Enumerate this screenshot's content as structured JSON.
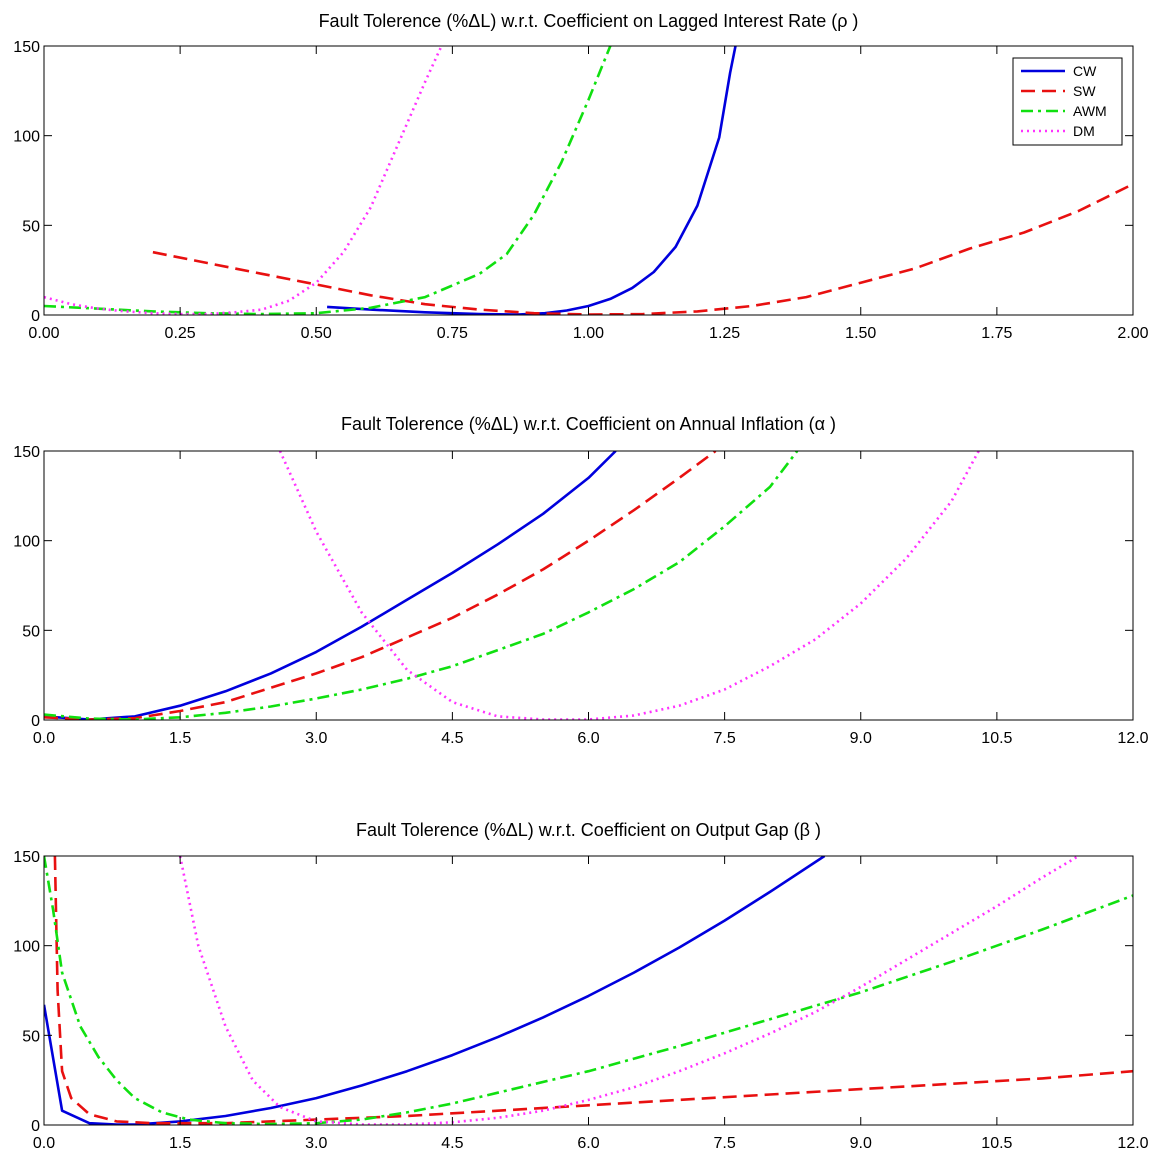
{
  "series_styles": [
    {
      "name": "CW",
      "color": "#0000dd",
      "dash": "solid"
    },
    {
      "name": "SW",
      "color": "#e81010",
      "dash": "dashed"
    },
    {
      "name": "AWM",
      "color": "#10e010",
      "dash": "dashdot"
    },
    {
      "name": "DM",
      "color": "#ff33ff",
      "dash": "dotted"
    }
  ],
  "chart_data": [
    {
      "type": "line",
      "title": "Fault Tolerence (%ΔL) w.r.t. Coefficient on Lagged Interest Rate (ρ )",
      "xlim": [
        0,
        2
      ],
      "ylim": [
        0,
        150
      ],
      "xticks": [
        "0.00",
        "0.25",
        "0.50",
        "0.75",
        "1.00",
        "1.25",
        "1.50",
        "1.75",
        "2.00"
      ],
      "yticks": [
        "0",
        "50",
        "100",
        "150"
      ],
      "legend": {
        "placement": "top-right",
        "entries": [
          "CW",
          "SW",
          "AWM",
          "DM"
        ]
      },
      "series": [
        {
          "name": "CW",
          "x": [
            0.52,
            0.6,
            0.7,
            0.8,
            0.87,
            0.92,
            0.96,
            1.0,
            1.04,
            1.08,
            1.12,
            1.16,
            1.2,
            1.24,
            1.26,
            1.27
          ],
          "y": [
            4.5,
            3,
            1.5,
            0.5,
            0.2,
            1,
            2.5,
            5,
            9,
            15,
            24,
            38,
            61,
            99,
            135,
            150
          ]
        },
        {
          "name": "SW",
          "x": [
            0.2,
            0.3,
            0.4,
            0.5,
            0.6,
            0.7,
            0.8,
            0.9,
            1.0,
            1.1,
            1.2,
            1.3,
            1.4,
            1.5,
            1.6,
            1.7,
            1.8,
            1.9,
            2.0
          ],
          "y": [
            35,
            29,
            23,
            17,
            11,
            6,
            3,
            1,
            0.3,
            0.5,
            2,
            5,
            10,
            18,
            26,
            37,
            46,
            58,
            73
          ]
        },
        {
          "name": "AWM",
          "x": [
            0.0,
            0.1,
            0.2,
            0.3,
            0.4,
            0.5,
            0.6,
            0.7,
            0.8,
            0.85,
            0.9,
            0.95,
            1.0,
            1.04
          ],
          "y": [
            5,
            3.5,
            2,
            1,
            0.5,
            1,
            4,
            10,
            23,
            34,
            56,
            85,
            120,
            150
          ]
        },
        {
          "name": "DM",
          "x": [
            0.0,
            0.05,
            0.1,
            0.15,
            0.2,
            0.25,
            0.3,
            0.35,
            0.4,
            0.45,
            0.5,
            0.55,
            0.6,
            0.65,
            0.7,
            0.73
          ],
          "y": [
            10,
            6,
            3.5,
            2,
            1,
            0.5,
            0.5,
            1.5,
            3,
            8,
            18,
            35,
            60,
            95,
            130,
            150
          ]
        }
      ]
    },
    {
      "type": "line",
      "title": "Fault Tolerence (%ΔL) w.r.t. Coefficient on Annual Inflation (α )",
      "xlim": [
        0,
        12
      ],
      "ylim": [
        0,
        150
      ],
      "xticks": [
        "0.0",
        "1.5",
        "3.0",
        "4.5",
        "6.0",
        "7.5",
        "9.0",
        "10.5",
        "12.0"
      ],
      "yticks": [
        "0",
        "50",
        "100",
        "150"
      ],
      "series": [
        {
          "name": "CW",
          "x": [
            0.0,
            0.5,
            1.0,
            1.5,
            2.0,
            2.5,
            3.0,
            3.5,
            4.0,
            4.5,
            5.0,
            5.5,
            6.0,
            6.3
          ],
          "y": [
            2,
            0.3,
            2,
            8,
            16,
            26,
            38,
            52,
            67,
            82,
            98,
            115,
            135,
            150
          ]
        },
        {
          "name": "SW",
          "x": [
            0.0,
            0.5,
            1.0,
            1.5,
            2.0,
            2.5,
            3.0,
            3.5,
            4.0,
            4.5,
            5.0,
            5.5,
            6.0,
            6.5,
            7.0,
            7.4
          ],
          "y": [
            1.5,
            0.3,
            1,
            5,
            10,
            18,
            26,
            35,
            46,
            57,
            70,
            84,
            100,
            117,
            135,
            150
          ]
        },
        {
          "name": "AWM",
          "x": [
            0.0,
            0.5,
            1.0,
            1.5,
            2.0,
            2.5,
            3.0,
            3.5,
            4.0,
            4.5,
            5.0,
            5.5,
            6.0,
            6.5,
            7.0,
            7.5,
            8.0,
            8.3
          ],
          "y": [
            3,
            0.8,
            0.3,
            1.5,
            4,
            7.5,
            12,
            17,
            23,
            30,
            39,
            48,
            60,
            73,
            88,
            108,
            130,
            150
          ]
        },
        {
          "name": "DM",
          "x": [
            2.6,
            3.0,
            3.5,
            4.0,
            4.5,
            5.0,
            5.5,
            6.0,
            6.5,
            7.0,
            7.5,
            8.0,
            8.5,
            9.0,
            9.5,
            10.0,
            10.3
          ],
          "y": [
            150,
            105,
            60,
            28,
            10,
            2,
            0.3,
            0.3,
            2.5,
            8,
            17,
            30,
            45,
            65,
            90,
            122,
            150
          ]
        }
      ]
    },
    {
      "type": "line",
      "title": "Fault Tolerence (%ΔL) w.r.t. Coefficient on Output Gap (β )",
      "xlim": [
        0,
        12
      ],
      "ylim": [
        0,
        150
      ],
      "xticks": [
        "0.0",
        "1.5",
        "3.0",
        "4.5",
        "6.0",
        "7.5",
        "9.0",
        "10.5",
        "12.0"
      ],
      "yticks": [
        "0",
        "50",
        "100",
        "150"
      ],
      "series": [
        {
          "name": "CW",
          "x": [
            0.0,
            0.2,
            0.5,
            0.8,
            1.0,
            1.5,
            2.0,
            2.5,
            3.0,
            3.5,
            4.0,
            4.5,
            5.0,
            5.5,
            6.0,
            6.5,
            7.0,
            7.5,
            8.0,
            8.6
          ],
          "y": [
            67,
            8,
            1,
            0.3,
            0.3,
            2,
            5,
            9.5,
            15,
            22,
            30,
            39,
            49,
            60,
            72,
            85,
            99,
            114,
            130,
            150
          ]
        },
        {
          "name": "SW",
          "x": [
            0.12,
            0.15,
            0.2,
            0.3,
            0.5,
            0.8,
            1.2,
            2.0,
            3.0,
            4.0,
            5.0,
            6.0,
            7.0,
            8.0,
            9.0,
            10.0,
            11.0,
            12.0
          ],
          "y": [
            150,
            75,
            30,
            15,
            6,
            2,
            1,
            1,
            3,
            5,
            8,
            11,
            14,
            17,
            20,
            23,
            26,
            30
          ]
        },
        {
          "name": "AWM",
          "x": [
            0.0,
            0.1,
            0.2,
            0.4,
            0.6,
            0.8,
            1.0,
            1.3,
            1.6,
            2.0,
            2.5,
            3.0,
            3.5,
            4.0,
            4.5,
            5.0,
            6.0,
            7.0,
            8.0,
            9.0,
            10.0,
            11.0,
            12.0
          ],
          "y": [
            150,
            120,
            85,
            55,
            38,
            25,
            15,
            7,
            3,
            1,
            0.5,
            1,
            3,
            7,
            12,
            18,
            30,
            44,
            59,
            74,
            91,
            109,
            128
          ]
        },
        {
          "name": "DM",
          "x": [
            1.5,
            1.7,
            2.0,
            2.3,
            2.6,
            3.0,
            3.5,
            4.0,
            4.5,
            5.0,
            5.5,
            6.0,
            6.5,
            7.0,
            7.5,
            8.0,
            8.5,
            9.0,
            9.5,
            10.0,
            10.5,
            11.0,
            11.4
          ],
          "y": [
            150,
            100,
            55,
            25,
            10,
            2,
            0.3,
            0.3,
            1.5,
            4,
            8,
            14,
            21,
            30,
            40,
            51,
            63,
            77,
            92,
            107,
            122,
            138,
            150
          ]
        }
      ]
    }
  ]
}
